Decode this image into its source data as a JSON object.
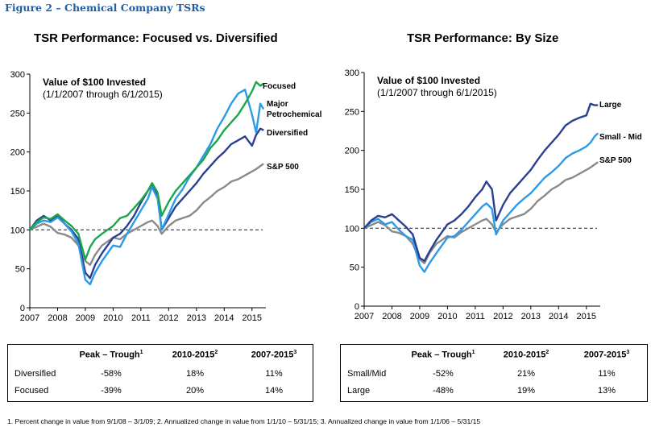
{
  "figure_title": "Figure 2 – Chemical Company TSRs",
  "chart_data": [
    {
      "type": "line",
      "title": "TSR Performance: Focused vs. Diversified",
      "subtitle_line1": "Value of $100 Invested",
      "subtitle_line2": "(1/1/2007 through 6/1/2015)",
      "xlabel": "",
      "ylabel": "",
      "x_ticks": [
        "2007",
        "2008",
        "2009",
        "2010",
        "2011",
        "2012",
        "2013",
        "2014",
        "2015"
      ],
      "xlim": [
        2007.0,
        2015.5
      ],
      "ylim": [
        0,
        300
      ],
      "y_ticks": [
        0,
        50,
        100,
        150,
        200,
        250,
        300
      ],
      "reference_line": {
        "value": 100,
        "style": "dashed",
        "color": "#1f3a6e"
      },
      "grid": false,
      "series": [
        {
          "name": "Focused",
          "color": "#1aa64a",
          "end_label": "Focused",
          "x": [
            2007.0,
            2007.25,
            2007.5,
            2007.75,
            2008.0,
            2008.25,
            2008.5,
            2008.75,
            2009.0,
            2009.17,
            2009.35,
            2009.6,
            2009.8,
            2010.0,
            2010.25,
            2010.5,
            2010.75,
            2011.0,
            2011.25,
            2011.4,
            2011.6,
            2011.75,
            2012.0,
            2012.25,
            2012.5,
            2012.75,
            2013.0,
            2013.25,
            2013.5,
            2013.75,
            2014.0,
            2014.25,
            2014.5,
            2014.75,
            2015.0,
            2015.15,
            2015.3,
            2015.42
          ],
          "values": [
            100,
            110,
            116,
            114,
            120,
            112,
            105,
            95,
            62,
            78,
            88,
            95,
            100,
            105,
            115,
            118,
            128,
            138,
            150,
            160,
            148,
            118,
            136,
            150,
            160,
            170,
            180,
            190,
            205,
            215,
            228,
            238,
            248,
            262,
            278,
            290,
            285,
            288
          ]
        },
        {
          "name": "Major Petrochemical",
          "color": "#2b9be8",
          "end_label": "Major Petrochemical",
          "x": [
            2007.0,
            2007.25,
            2007.5,
            2007.75,
            2008.0,
            2008.25,
            2008.5,
            2008.75,
            2009.0,
            2009.17,
            2009.35,
            2009.6,
            2009.8,
            2010.0,
            2010.25,
            2010.5,
            2010.75,
            2011.0,
            2011.25,
            2011.4,
            2011.6,
            2011.75,
            2012.0,
            2012.25,
            2012.5,
            2012.75,
            2013.0,
            2013.25,
            2013.5,
            2013.75,
            2014.0,
            2014.25,
            2014.5,
            2014.75,
            2015.0,
            2015.15,
            2015.3,
            2015.42
          ],
          "values": [
            100,
            108,
            112,
            110,
            116,
            108,
            98,
            82,
            36,
            30,
            45,
            60,
            70,
            80,
            78,
            95,
            110,
            125,
            140,
            155,
            140,
            100,
            120,
            140,
            152,
            168,
            180,
            195,
            210,
            230,
            245,
            262,
            275,
            280,
            248,
            225,
            262,
            255
          ]
        },
        {
          "name": "Diversified",
          "color": "#2c3f8f",
          "end_label": "Diversified",
          "x": [
            2007.0,
            2007.25,
            2007.5,
            2007.75,
            2008.0,
            2008.25,
            2008.5,
            2008.75,
            2009.0,
            2009.17,
            2009.35,
            2009.6,
            2009.8,
            2010.0,
            2010.25,
            2010.5,
            2010.75,
            2011.0,
            2011.25,
            2011.4,
            2011.6,
            2011.75,
            2012.0,
            2012.25,
            2012.5,
            2012.75,
            2013.0,
            2013.25,
            2013.5,
            2013.75,
            2014.0,
            2014.25,
            2014.5,
            2014.75,
            2015.0,
            2015.15,
            2015.3,
            2015.42
          ],
          "values": [
            100,
            112,
            118,
            112,
            118,
            108,
            100,
            88,
            45,
            38,
            55,
            70,
            80,
            90,
            95,
            105,
            118,
            135,
            150,
            158,
            145,
            100,
            115,
            130,
            140,
            150,
            160,
            172,
            182,
            192,
            200,
            210,
            215,
            220,
            208,
            222,
            230,
            228
          ]
        },
        {
          "name": "S&P 500",
          "color": "#8a8a8a",
          "end_label": "S&P 500",
          "x": [
            2007.0,
            2007.25,
            2007.5,
            2007.75,
            2008.0,
            2008.25,
            2008.5,
            2008.75,
            2009.0,
            2009.17,
            2009.35,
            2009.6,
            2009.8,
            2010.0,
            2010.25,
            2010.5,
            2010.75,
            2011.0,
            2011.25,
            2011.4,
            2011.6,
            2011.75,
            2012.0,
            2012.25,
            2012.5,
            2012.75,
            2013.0,
            2013.25,
            2013.5,
            2013.75,
            2014.0,
            2014.25,
            2014.5,
            2014.75,
            2015.0,
            2015.15,
            2015.3,
            2015.42
          ],
          "values": [
            100,
            104,
            108,
            104,
            96,
            94,
            90,
            80,
            60,
            55,
            68,
            80,
            85,
            90,
            88,
            95,
            100,
            105,
            110,
            112,
            105,
            95,
            105,
            112,
            115,
            118,
            125,
            135,
            142,
            150,
            155,
            162,
            165,
            170,
            175,
            178,
            182,
            185
          ]
        }
      ]
    },
    {
      "type": "line",
      "title": "TSR Performance: By Size",
      "subtitle_line1": "Value of $100 Invested",
      "subtitle_line2": "(1/1/2007 through 6/1/2015)",
      "xlabel": "",
      "ylabel": "",
      "x_ticks": [
        "2007",
        "2008",
        "2009",
        "2010",
        "2011",
        "2012",
        "2013",
        "2014",
        "2015"
      ],
      "xlim": [
        2007.0,
        2015.5
      ],
      "ylim": [
        0,
        300
      ],
      "y_ticks": [
        0,
        50,
        100,
        150,
        200,
        250,
        300
      ],
      "reference_line": {
        "value": 100,
        "style": "dashed",
        "color": "#1f3a6e"
      },
      "grid": false,
      "series": [
        {
          "name": "Large",
          "color": "#2c3f8f",
          "end_label": "Large",
          "x": [
            2007.0,
            2007.25,
            2007.5,
            2007.75,
            2008.0,
            2008.25,
            2008.5,
            2008.75,
            2009.0,
            2009.17,
            2009.35,
            2009.6,
            2009.8,
            2010.0,
            2010.25,
            2010.5,
            2010.75,
            2011.0,
            2011.25,
            2011.4,
            2011.6,
            2011.75,
            2012.0,
            2012.25,
            2012.5,
            2012.75,
            2013.0,
            2013.25,
            2013.5,
            2013.75,
            2014.0,
            2014.25,
            2014.5,
            2014.75,
            2015.0,
            2015.15,
            2015.3,
            2015.42
          ],
          "values": [
            100,
            110,
            116,
            114,
            118,
            110,
            102,
            92,
            62,
            58,
            70,
            85,
            95,
            105,
            110,
            118,
            128,
            140,
            150,
            160,
            150,
            110,
            130,
            145,
            155,
            165,
            175,
            188,
            200,
            210,
            220,
            232,
            238,
            242,
            245,
            260,
            258,
            258
          ]
        },
        {
          "name": "Small - Mid",
          "color": "#2b9be8",
          "end_label": "Small - Mid",
          "x": [
            2007.0,
            2007.25,
            2007.5,
            2007.75,
            2008.0,
            2008.25,
            2008.5,
            2008.75,
            2009.0,
            2009.17,
            2009.35,
            2009.6,
            2009.8,
            2010.0,
            2010.25,
            2010.5,
            2010.75,
            2011.0,
            2011.25,
            2011.4,
            2011.6,
            2011.75,
            2012.0,
            2012.25,
            2012.5,
            2012.75,
            2013.0,
            2013.25,
            2013.5,
            2013.75,
            2014.0,
            2014.25,
            2014.5,
            2014.75,
            2015.0,
            2015.15,
            2015.3,
            2015.42
          ],
          "values": [
            100,
            108,
            112,
            105,
            108,
            98,
            90,
            85,
            52,
            44,
            55,
            68,
            78,
            88,
            90,
            98,
            108,
            118,
            128,
            132,
            125,
            92,
            110,
            120,
            130,
            138,
            145,
            155,
            165,
            172,
            180,
            190,
            196,
            200,
            205,
            210,
            218,
            222
          ]
        },
        {
          "name": "S&P 500",
          "color": "#8a8a8a",
          "end_label": "S&P 500",
          "x": [
            2007.0,
            2007.25,
            2007.5,
            2007.75,
            2008.0,
            2008.25,
            2008.5,
            2008.75,
            2009.0,
            2009.17,
            2009.35,
            2009.6,
            2009.8,
            2010.0,
            2010.25,
            2010.5,
            2010.75,
            2011.0,
            2011.25,
            2011.4,
            2011.6,
            2011.75,
            2012.0,
            2012.25,
            2012.5,
            2012.75,
            2013.0,
            2013.25,
            2013.5,
            2013.75,
            2014.0,
            2014.25,
            2014.5,
            2014.75,
            2015.0,
            2015.15,
            2015.3,
            2015.42
          ],
          "values": [
            100,
            104,
            108,
            104,
            96,
            94,
            90,
            80,
            60,
            55,
            68,
            80,
            85,
            90,
            88,
            95,
            100,
            105,
            110,
            112,
            105,
            95,
            105,
            112,
            115,
            118,
            125,
            135,
            142,
            150,
            155,
            162,
            165,
            170,
            175,
            178,
            182,
            185
          ]
        }
      ]
    }
  ],
  "tables": {
    "left": {
      "headers": [
        "Peak – Trough",
        "2010-2015",
        "2007-2015"
      ],
      "header_sups": [
        "1",
        "2",
        "3"
      ],
      "rows": [
        {
          "label": "Diversified",
          "values": [
            "-58%",
            "18%",
            "11%"
          ]
        },
        {
          "label": "Focused",
          "values": [
            "-39%",
            "20%",
            "14%"
          ]
        }
      ]
    },
    "right": {
      "headers": [
        "Peak – Trough",
        "2010-2015",
        "2007-2015"
      ],
      "header_sups": [
        "1",
        "2",
        "3"
      ],
      "rows": [
        {
          "label": "Small/Mid",
          "values": [
            "-52%",
            "21%",
            "11%"
          ]
        },
        {
          "label": "Large",
          "values": [
            "-48%",
            "19%",
            "13%"
          ]
        }
      ]
    }
  },
  "footnote": "1. Percent change in value from 9/1/08 – 3/1/09; 2. Annualized change in value from 1/1/10 – 5/31/15; 3. Annualized change in value from 1/1/06 – 5/31/15"
}
